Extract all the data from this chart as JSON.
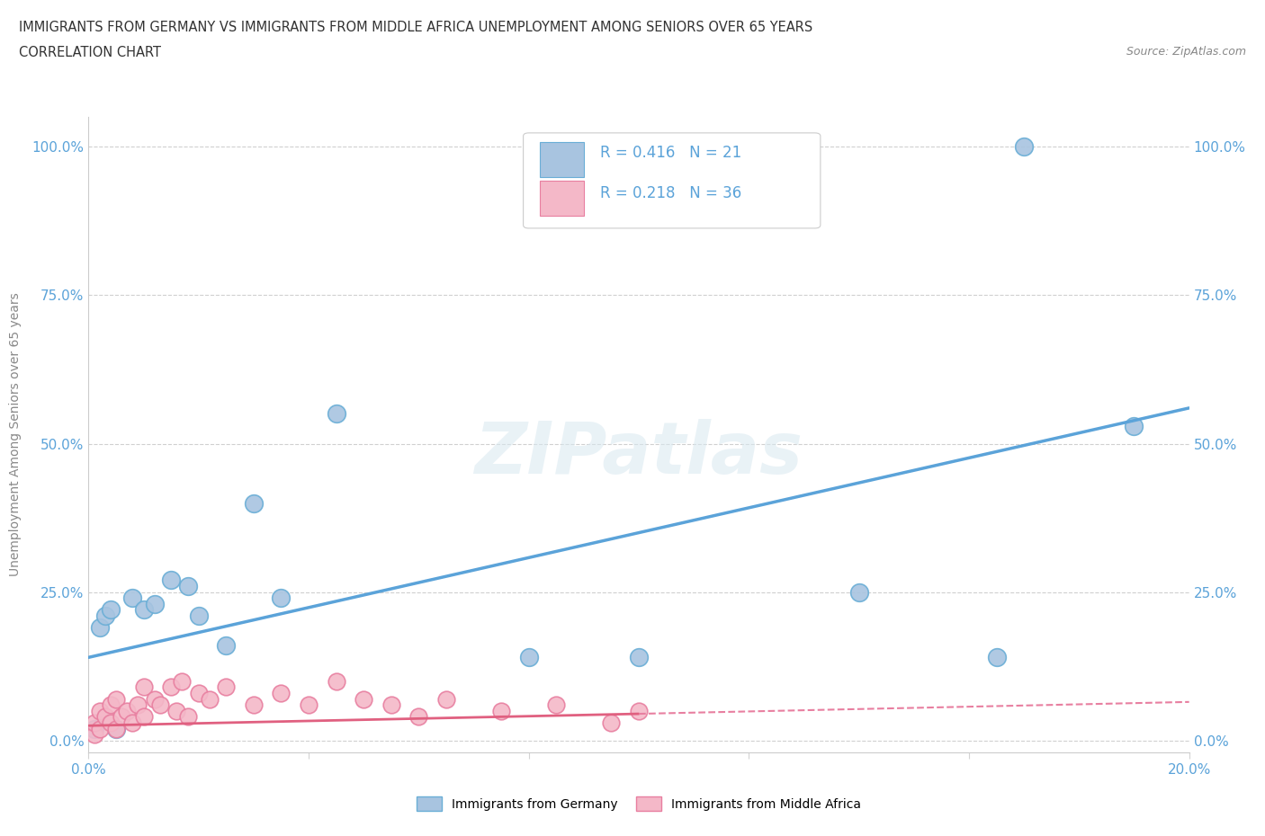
{
  "title_line1": "IMMIGRANTS FROM GERMANY VS IMMIGRANTS FROM MIDDLE AFRICA UNEMPLOYMENT AMONG SENIORS OVER 65 YEARS",
  "title_line2": "CORRELATION CHART",
  "source": "Source: ZipAtlas.com",
  "xmin": 0.0,
  "xmax": 0.2,
  "ymin": -0.02,
  "ymax": 1.05,
  "germany_color": "#a8c4e0",
  "germany_edge": "#6aaed6",
  "middle_africa_color": "#f4b8c8",
  "middle_africa_edge": "#e87fa0",
  "trend_germany_color": "#5ba3d9",
  "trend_middle_africa_solid_color": "#e06080",
  "trend_middle_africa_dash_color": "#e87fa0",
  "R_germany": 0.416,
  "N_germany": 21,
  "R_middle_africa": 0.218,
  "N_middle_africa": 36,
  "legend_label_germany": "Immigrants from Germany",
  "legend_label_middle_africa": "Immigrants from Middle Africa",
  "watermark": "ZIPatlas",
  "trend_germany_x0": 0.0,
  "trend_germany_y0": 0.14,
  "trend_germany_x1": 0.2,
  "trend_germany_y1": 0.56,
  "trend_ma_x0": 0.0,
  "trend_ma_y0": 0.025,
  "trend_ma_solid_x1": 0.1,
  "trend_ma_solid_y1": 0.045,
  "trend_ma_dash_x1": 0.2,
  "trend_ma_dash_y1": 0.065,
  "germany_scatter_x": [
    0.001,
    0.002,
    0.003,
    0.004,
    0.005,
    0.008,
    0.01,
    0.012,
    0.015,
    0.018,
    0.02,
    0.025,
    0.03,
    0.035,
    0.045,
    0.08,
    0.1,
    0.14,
    0.165,
    0.17,
    0.19
  ],
  "germany_scatter_y": [
    0.02,
    0.19,
    0.21,
    0.22,
    0.02,
    0.24,
    0.22,
    0.23,
    0.27,
    0.26,
    0.21,
    0.16,
    0.4,
    0.24,
    0.55,
    0.14,
    0.14,
    0.25,
    0.14,
    1.0,
    0.53
  ],
  "middle_africa_scatter_x": [
    0.001,
    0.001,
    0.002,
    0.002,
    0.003,
    0.004,
    0.004,
    0.005,
    0.005,
    0.006,
    0.007,
    0.008,
    0.009,
    0.01,
    0.01,
    0.012,
    0.013,
    0.015,
    0.016,
    0.017,
    0.018,
    0.02,
    0.022,
    0.025,
    0.03,
    0.035,
    0.04,
    0.045,
    0.05,
    0.055,
    0.06,
    0.065,
    0.075,
    0.085,
    0.095,
    0.1
  ],
  "middle_africa_scatter_y": [
    0.01,
    0.03,
    0.02,
    0.05,
    0.04,
    0.03,
    0.06,
    0.02,
    0.07,
    0.04,
    0.05,
    0.03,
    0.06,
    0.04,
    0.09,
    0.07,
    0.06,
    0.09,
    0.05,
    0.1,
    0.04,
    0.08,
    0.07,
    0.09,
    0.06,
    0.08,
    0.06,
    0.1,
    0.07,
    0.06,
    0.04,
    0.07,
    0.05,
    0.06,
    0.03,
    0.05
  ]
}
